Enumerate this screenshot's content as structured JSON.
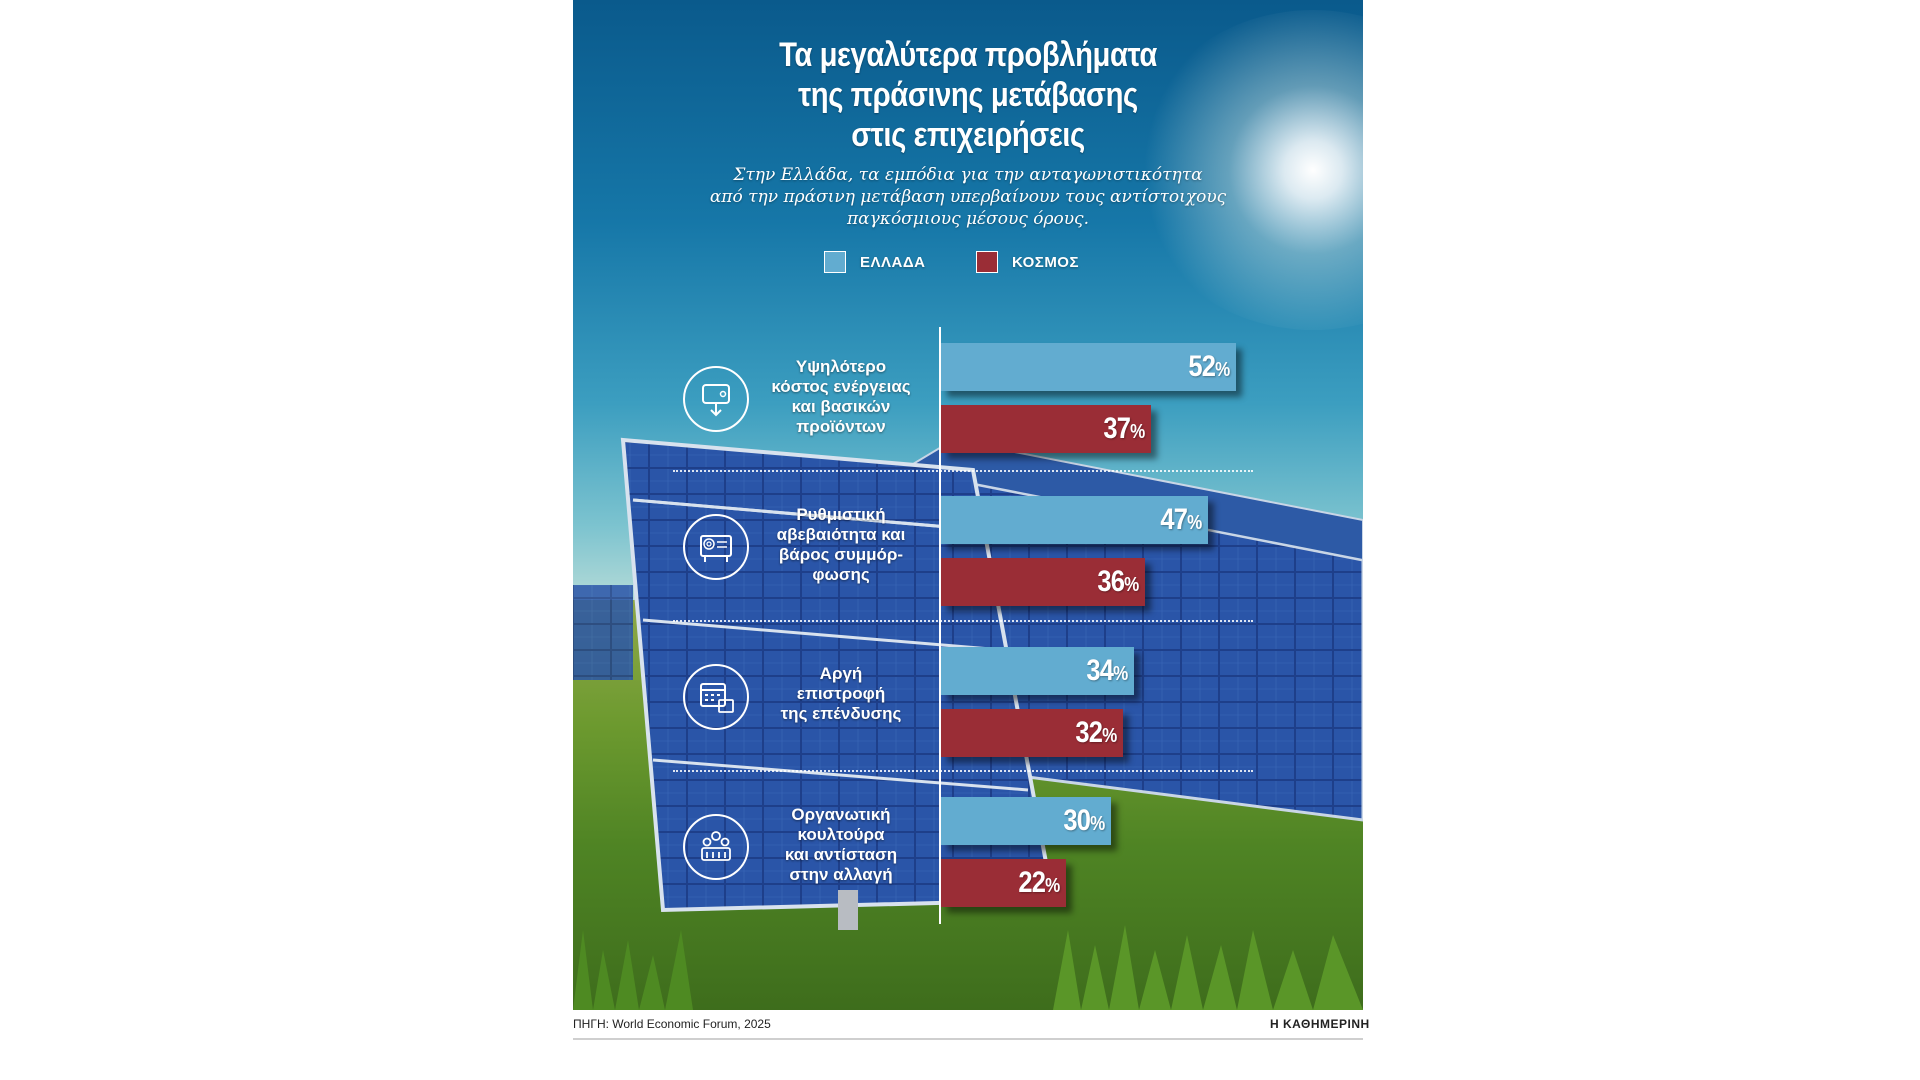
{
  "title_lines": [
    "Τα μεγαλύτερα προβλήματα",
    "της πράσινης μετάβασης",
    "στις επιχειρήσεις"
  ],
  "subtitle_lines": [
    "Στην Ελλάδα, τα εμπόδια για την ανταγωνιστικότητα",
    "από την πράσινη μετάβαση υπερβαίνουν τους αντίστοιχους",
    "παγκόσμιους μέσους όρους."
  ],
  "source": "ΠΗΓΗ: World Economic Forum, 2025",
  "brand": "Η ΚΑΘΗΜΕΡΙΝΗ",
  "percent_sign": "%",
  "colors": {
    "greece": "#62acd0",
    "world": "#9a2d36"
  },
  "icons": [
    "wallet-down-icon",
    "fingerprint-document-icon",
    "calendar-money-icon",
    "team-people-icon"
  ],
  "chart_data": {
    "type": "bar",
    "orientation": "horizontal",
    "categories": [
      "Υψηλότερο κόστος ενέργειας και βασικών προϊόντων",
      "Ρυθμιστική αβεβαιότητα και βάρος συμμόρφωσης",
      "Αργή επιστροφή της επένδυσης",
      "Οργανωτική κουλτούρα και αντίσταση στην αλλαγή"
    ],
    "category_label_lines": [
      [
        "Υψηλότερο",
        "κόστος ενέργειας",
        "και βασικών",
        "προϊόντων"
      ],
      [
        "Ρυθμιστική",
        "αβεβαιότητα και",
        "βάρος συμμόρ-",
        "φωσης"
      ],
      [
        "Αργή",
        "επιστροφή",
        "της επένδυσης"
      ],
      [
        "Οργανωτική",
        "κουλτούρα",
        "και αντίσταση",
        "στην αλλαγή"
      ]
    ],
    "series": [
      {
        "name": "ΕΛΛΑΔΑ",
        "values": [
          52,
          47,
          34,
          30
        ]
      },
      {
        "name": "ΚΟΣΜΟΣ",
        "values": [
          37,
          36,
          32,
          22
        ]
      }
    ],
    "unit": "%",
    "legend": "top"
  }
}
